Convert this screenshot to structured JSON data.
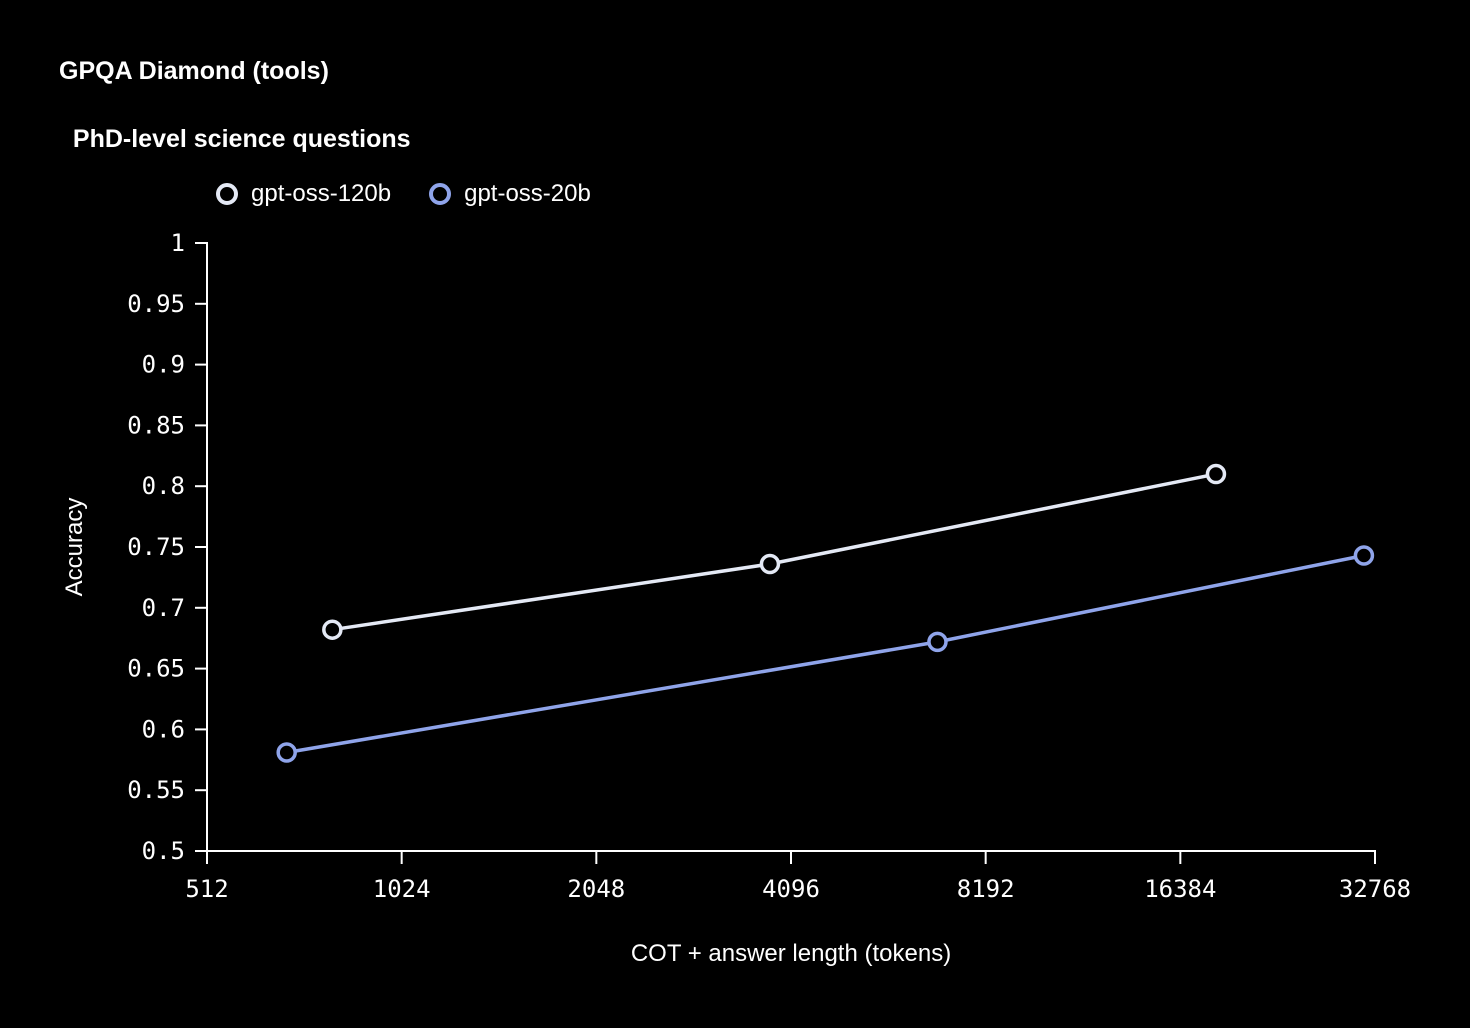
{
  "page": {
    "background_color": "#000000",
    "text_color": "#ffffff"
  },
  "header": {
    "title_line1": "GPQA Diamond (tools)",
    "title_line2": "PhD-level science questions"
  },
  "chart_data": {
    "type": "line",
    "title": "GPQA Diamond (tools)",
    "subtitle": "PhD-level science questions",
    "xlabel": "COT + answer length (tokens)",
    "ylabel": "Accuracy",
    "x_scale": "log2",
    "xlim": [
      512,
      32768
    ],
    "ylim": [
      0.5,
      1.0
    ],
    "grid": false,
    "legend_position": "top-left",
    "marker": "open-circle",
    "axis_color": "#ffffff",
    "x_ticks": [
      {
        "value": 512,
        "label": "512"
      },
      {
        "value": 1024,
        "label": "1024"
      },
      {
        "value": 2048,
        "label": "2048"
      },
      {
        "value": 4096,
        "label": "4096"
      },
      {
        "value": 8192,
        "label": "8192"
      },
      {
        "value": 16384,
        "label": "16384"
      },
      {
        "value": 32768,
        "label": "32768"
      }
    ],
    "y_ticks": [
      {
        "value": 0.5,
        "label": "0.5"
      },
      {
        "value": 0.55,
        "label": "0.55"
      },
      {
        "value": 0.6,
        "label": "0.6"
      },
      {
        "value": 0.65,
        "label": "0.65"
      },
      {
        "value": 0.7,
        "label": "0.7"
      },
      {
        "value": 0.75,
        "label": "0.75"
      },
      {
        "value": 0.8,
        "label": "0.8"
      },
      {
        "value": 0.85,
        "label": "0.85"
      },
      {
        "value": 0.9,
        "label": "0.9"
      },
      {
        "value": 0.95,
        "label": "0.95"
      },
      {
        "value": 1.0,
        "label": "1"
      }
    ],
    "series": [
      {
        "name": "gpt-oss-120b",
        "color": "#E4E9F5",
        "points": [
          {
            "x": 800,
            "y": 0.682
          },
          {
            "x": 3800,
            "y": 0.736
          },
          {
            "x": 18600,
            "y": 0.81
          }
        ]
      },
      {
        "name": "gpt-oss-20b",
        "color": "#8FA4EA",
        "points": [
          {
            "x": 680,
            "y": 0.581
          },
          {
            "x": 6900,
            "y": 0.672
          },
          {
            "x": 31500,
            "y": 0.743
          }
        ]
      }
    ]
  }
}
